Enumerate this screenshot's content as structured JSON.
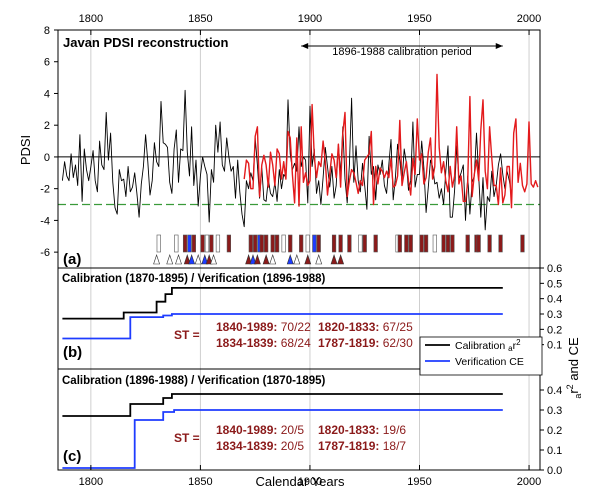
{
  "colors": {
    "proxy": "#000000",
    "instrumental": "#e31a1c",
    "threshold": "#3a9a3a",
    "calibration": "#000000",
    "verification": "#1e3cff",
    "st_text": "#8b1a1a",
    "bar_red": "#8b1a1a",
    "bar_blue": "#1e3cff",
    "bar_white": "#ffffff"
  },
  "chart_data": [
    {
      "type": "line",
      "panel": "a",
      "title": "Javan PDSI reconstruction",
      "ylabel": "PDSI",
      "xlim": [
        1785,
        2005
      ],
      "ylim": [
        -7,
        8
      ],
      "x_ticks": [
        1800,
        1850,
        1900,
        1950,
        2000
      ],
      "y_ticks": [
        8,
        6,
        4,
        2,
        0,
        -2,
        -4,
        -6
      ],
      "threshold": -3,
      "calibration_period": {
        "label": "1896-1988 calibration period",
        "start": 1896,
        "end": 1988
      },
      "series": [
        {
          "name": "",
          "color": "#000000",
          "start": 1787,
          "values": [
            -1.5,
            -0.3,
            -1.2,
            -1.5,
            0.2,
            -1.3,
            -0.5,
            -1.8,
            1.4,
            -2.8,
            0.5,
            -0.8,
            -1.5,
            -0.6,
            0.4,
            -1.5,
            -2.2,
            1.0,
            -0.5,
            -0.8,
            2.8,
            -0.2,
            1.5,
            -1.6,
            -3.2,
            -3.6,
            -0.8,
            -1.5,
            -1.4,
            -2.5,
            -0.6,
            -2.2,
            -1.9,
            -1.0,
            -2.3,
            -3.8,
            -1.7,
            -0.6,
            1.4,
            -0.3,
            -2.4,
            -1.5,
            0.9,
            -0.3,
            -0.6,
            3.5,
            0.9,
            0.8,
            0.6,
            -1.6,
            -2.3,
            0.5,
            1.7,
            -1.6,
            0.5,
            0.4,
            4.2,
            0.3,
            -1.2,
            1.9,
            -1.8,
            -0.2,
            -3.1,
            -1.2,
            0.0,
            -0.6,
            -1.1,
            -4.1,
            -0.8,
            -1.6,
            2.0,
            0.3,
            2.2,
            -0.5,
            -0.9,
            1.2,
            0.0,
            -0.9,
            -0.6,
            -2.6,
            -0.2,
            -2.2,
            -3.6,
            -4.4,
            -1.5,
            -2.0,
            -1.0,
            -1.5,
            1.2,
            -0.5,
            -2.6,
            -0.7,
            -2.7,
            -2.8,
            -1.4,
            -2.3,
            -2.5,
            -1.6,
            -2.8,
            -0.8,
            -2.0,
            -1.1,
            -1.3,
            3.6,
            0.2,
            -0.8,
            -0.4,
            -0.9,
            1.9,
            -0.6,
            0.0,
            -0.2,
            -2.9,
            3.2,
            -0.6,
            0.5,
            -2.3,
            -1.5,
            -3.0,
            -1.3,
            0.6,
            -0.6,
            -1.9,
            -0.6,
            -2.6,
            -1.8,
            0.8,
            -1.1,
            1.9,
            -1.4,
            -2.9,
            -0.5,
            3.7,
            -1.6,
            0.7,
            -1.5,
            -2.2,
            -0.4,
            -1.8,
            -3.3,
            1.3,
            -1.1,
            -0.6,
            -2.7,
            -0.5,
            -1.1,
            -0.2,
            -1.8,
            -2.3,
            -0.5,
            1.1,
            -2.7,
            -1.3,
            0.8,
            -0.2,
            -1.6,
            0.5,
            -0.4,
            -2.1,
            -1.5,
            2.2,
            -1.9,
            -1.1,
            -1.1,
            1.0,
            -0.7,
            -3.5,
            -1.9,
            -0.2,
            -0.6,
            -1.7,
            -1.6,
            -2.6,
            -2.0,
            -3.0,
            -0.9,
            0.7,
            -3.8,
            -3.8,
            -2.1,
            0.7,
            -1.4,
            -1.0,
            -0.5,
            -4.0,
            -1.2,
            -3.6,
            -1.6,
            -1.2,
            1.5,
            -1.2,
            -3.8,
            -1.3,
            -4.6,
            -2.5,
            -2.8,
            -0.9,
            -2.5,
            -1.8,
            -0.5,
            0.2,
            -1.1,
            -2.0,
            -0.9,
            -1.5,
            -2.4
          ]
        },
        {
          "name": "",
          "color": "#e31a1c",
          "start": 1870,
          "values": [
            -1.4,
            -0.2,
            -0.4,
            -2.0,
            -2.0,
            1.3,
            1.9,
            -2.5,
            -0.5,
            0.1,
            -0.5,
            -1.9,
            0.3,
            -0.5,
            -1.8,
            0.5,
            0.2,
            -1.4,
            -0.3,
            -1.4,
            1.6,
            1.2,
            -1.1,
            -2.9,
            1.2,
            -3.1,
            1.9,
            -1.6,
            -1.0,
            -1.8,
            -1.5,
            3.3,
            0.0,
            -1.3,
            -0.3,
            -0.6,
            1.0,
            -0.3,
            -2.4,
            -1.1,
            0.2,
            -0.2,
            -1.3,
            0.8,
            -1.9,
            1.5,
            2.8,
            -2.5,
            -1.5,
            -0.8,
            -1.0,
            -1.6,
            -2.3,
            -1.5,
            -1.8,
            -0.2,
            0.0,
            0.2,
            1.6,
            -3.0,
            -0.6,
            -1.7,
            -0.7,
            -0.9,
            -1.3,
            -0.9,
            -1.3,
            -0.1,
            -1.9,
            -1.8,
            -1.2,
            2.3,
            -1.8,
            -1.0,
            -0.3,
            -1.5,
            -2.4,
            -0.1,
            -1.1,
            2.4,
            -0.2,
            0.2,
            -1.7,
            -1.3,
            0.3,
            1.2,
            -1.4,
            -0.6,
            5.2,
            0.6,
            -1.0,
            -0.3,
            -1.5,
            -2.2,
            -0.6,
            -1.9,
            -1.2,
            1.9,
            -1.7,
            -1.2,
            -2.8,
            -2.8,
            -1.6,
            3.8,
            -2.5,
            -1.1,
            -0.2,
            -1.5,
            1.7,
            3.6,
            -0.9,
            -2.0,
            1.9,
            -0.1,
            -1.8,
            -1.8,
            -3.0,
            -0.7,
            -2.9,
            -2.4,
            -0.6,
            -0.6,
            -3.2,
            1.5,
            2.4,
            -1.6,
            -0.4,
            -1.8,
            -2.2,
            -1.7,
            2.2,
            -1.7,
            -1.9,
            -1.5,
            -1.9
          ]
        }
      ],
      "event_markers": {
        "bars": [
          {
            "year": 1831,
            "fill": "white"
          },
          {
            "year": 1839,
            "fill": "white"
          },
          {
            "year": 1843,
            "fill": "red"
          },
          {
            "year": 1845,
            "fill": "blue"
          },
          {
            "year": 1847,
            "fill": "red"
          },
          {
            "year": 1851,
            "fill": "red"
          },
          {
            "year": 1853,
            "fill": "white"
          },
          {
            "year": 1855,
            "fill": "red"
          },
          {
            "year": 1858,
            "fill": "white"
          },
          {
            "year": 1863,
            "fill": "red"
          },
          {
            "year": 1873,
            "fill": "red"
          },
          {
            "year": 1875,
            "fill": "red"
          },
          {
            "year": 1877,
            "fill": "blue"
          },
          {
            "year": 1878,
            "fill": "red"
          },
          {
            "year": 1880,
            "fill": "red"
          },
          {
            "year": 1883,
            "fill": "red"
          },
          {
            "year": 1885,
            "fill": "red"
          },
          {
            "year": 1888,
            "fill": "white"
          },
          {
            "year": 1891,
            "fill": "red"
          },
          {
            "year": 1896,
            "fill": "red"
          },
          {
            "year": 1899,
            "fill": "white"
          },
          {
            "year": 1902,
            "fill": "blue"
          },
          {
            "year": 1904,
            "fill": "red"
          },
          {
            "year": 1911,
            "fill": "red"
          },
          {
            "year": 1914,
            "fill": "red"
          },
          {
            "year": 1918,
            "fill": "red"
          },
          {
            "year": 1923,
            "fill": "white"
          },
          {
            "year": 1925,
            "fill": "red"
          },
          {
            "year": 1930,
            "fill": "red"
          },
          {
            "year": 1940,
            "fill": "white"
          },
          {
            "year": 1941,
            "fill": "red"
          },
          {
            "year": 1944,
            "fill": "red"
          },
          {
            "year": 1946,
            "fill": "red"
          },
          {
            "year": 1951,
            "fill": "red"
          },
          {
            "year": 1953,
            "fill": "red"
          },
          {
            "year": 1957,
            "fill": "white"
          },
          {
            "year": 1961,
            "fill": "red"
          },
          {
            "year": 1963,
            "fill": "red"
          },
          {
            "year": 1965,
            "fill": "red"
          },
          {
            "year": 1972,
            "fill": "red"
          },
          {
            "year": 1976,
            "fill": "red"
          },
          {
            "year": 1977,
            "fill": "red"
          },
          {
            "year": 1982,
            "fill": "red"
          },
          {
            "year": 1987,
            "fill": "red"
          },
          {
            "year": 1997,
            "fill": "red"
          }
        ],
        "triangles": [
          {
            "year": 1830,
            "fill": "white"
          },
          {
            "year": 1836,
            "fill": "white"
          },
          {
            "year": 1840,
            "fill": "white"
          },
          {
            "year": 1844,
            "fill": "red"
          },
          {
            "year": 1846,
            "fill": "blue"
          },
          {
            "year": 1849,
            "fill": "white"
          },
          {
            "year": 1852,
            "fill": "blue"
          },
          {
            "year": 1854,
            "fill": "red"
          },
          {
            "year": 1856,
            "fill": "white"
          },
          {
            "year": 1872,
            "fill": "red"
          },
          {
            "year": 1874,
            "fill": "blue"
          },
          {
            "year": 1876,
            "fill": "red"
          },
          {
            "year": 1880,
            "fill": "red"
          },
          {
            "year": 1883,
            "fill": "white"
          },
          {
            "year": 1891,
            "fill": "blue"
          },
          {
            "year": 1894,
            "fill": "white"
          },
          {
            "year": 1899,
            "fill": "red"
          },
          {
            "year": 1904,
            "fill": "white"
          },
          {
            "year": 1911,
            "fill": "red"
          },
          {
            "year": 1914,
            "fill": "red"
          }
        ]
      }
    },
    {
      "type": "line",
      "panel": "b",
      "title": "Calibration (1870-1895) / Verification (1896-1988)",
      "ylabel": "a r² and CE",
      "ylabel_parts": {
        "subscript": "a",
        "main": "r",
        "superscript": "2",
        "suffix": " and CE"
      },
      "xlim": [
        1785,
        2005
      ],
      "ylim": [
        0,
        0.6
      ],
      "y_ticks": [
        "0.6",
        "0.5",
        "0.4",
        "0.3",
        "0.2",
        "0.1"
      ],
      "series": [
        {
          "name": "Calibration ar²",
          "color": "#000000",
          "x": [
            1787,
            1815,
            1815,
            1830,
            1830,
            1834,
            1834,
            1837,
            1837,
            1988
          ],
          "y": [
            0.27,
            0.27,
            0.31,
            0.31,
            0.38,
            0.38,
            0.43,
            0.43,
            0.47,
            0.47
          ]
        },
        {
          "name": "Verification CE",
          "color": "#1e3cff",
          "x": [
            1787,
            1818,
            1818,
            1833,
            1833,
            1837,
            1837,
            1988
          ],
          "y": [
            0.14,
            0.14,
            0.28,
            0.28,
            0.29,
            0.29,
            0.3,
            0.3
          ]
        }
      ],
      "st_stats": {
        "prefix": "ST =",
        "rows": [
          [
            {
              "period": "1840-1989:",
              "value": "70/22"
            },
            {
              "period": "1820-1833:",
              "value": "67/25"
            }
          ],
          [
            {
              "period": "1834-1839:",
              "value": "68/24"
            },
            {
              "period": "1787-1819:",
              "value": "62/30"
            }
          ]
        ]
      },
      "legend": {
        "position": "right",
        "items": [
          {
            "label_main": "Calibration ",
            "label_sub": "a",
            "label_mid": "r",
            "label_sup": "2",
            "color": "#000000"
          },
          {
            "label_main": "Verification CE",
            "label_sub": "",
            "label_mid": "",
            "label_sup": "",
            "color": "#1e3cff"
          }
        ]
      }
    },
    {
      "type": "line",
      "panel": "c",
      "title": "Calibration (1896-1988) / Verification (1870-1895)",
      "xlabel": "Calendar Years",
      "xlim": [
        1785,
        2005
      ],
      "ylim": [
        0,
        0.5
      ],
      "x_ticks": [
        1800,
        1850,
        1900,
        1950,
        2000
      ],
      "y_ticks": [
        "0.4",
        "0.3",
        "0.2",
        "0.1",
        "0.0"
      ],
      "series": [
        {
          "name": "Calibration ar²",
          "color": "#000000",
          "x": [
            1787,
            1818,
            1818,
            1833,
            1833,
            1837,
            1837,
            1988
          ],
          "y": [
            0.27,
            0.27,
            0.33,
            0.33,
            0.36,
            0.36,
            0.38,
            0.38
          ]
        },
        {
          "name": "Verification CE",
          "color": "#1e3cff",
          "x": [
            1787,
            1820,
            1820,
            1833,
            1833,
            1838,
            1838,
            1988
          ],
          "y": [
            0.01,
            0.01,
            0.25,
            0.25,
            0.29,
            0.29,
            0.3,
            0.3
          ]
        }
      ],
      "st_stats": {
        "prefix": "ST =",
        "rows": [
          [
            {
              "period": "1840-1989:",
              "value": "20/5"
            },
            {
              "period": "1820-1833:",
              "value": "19/6"
            }
          ],
          [
            {
              "period": "1834-1839:",
              "value": "20/5"
            },
            {
              "period": "1787-1819:",
              "value": "18/7"
            }
          ]
        ]
      }
    }
  ],
  "panel_labels": [
    "(a)",
    "(b)",
    "(c)"
  ]
}
